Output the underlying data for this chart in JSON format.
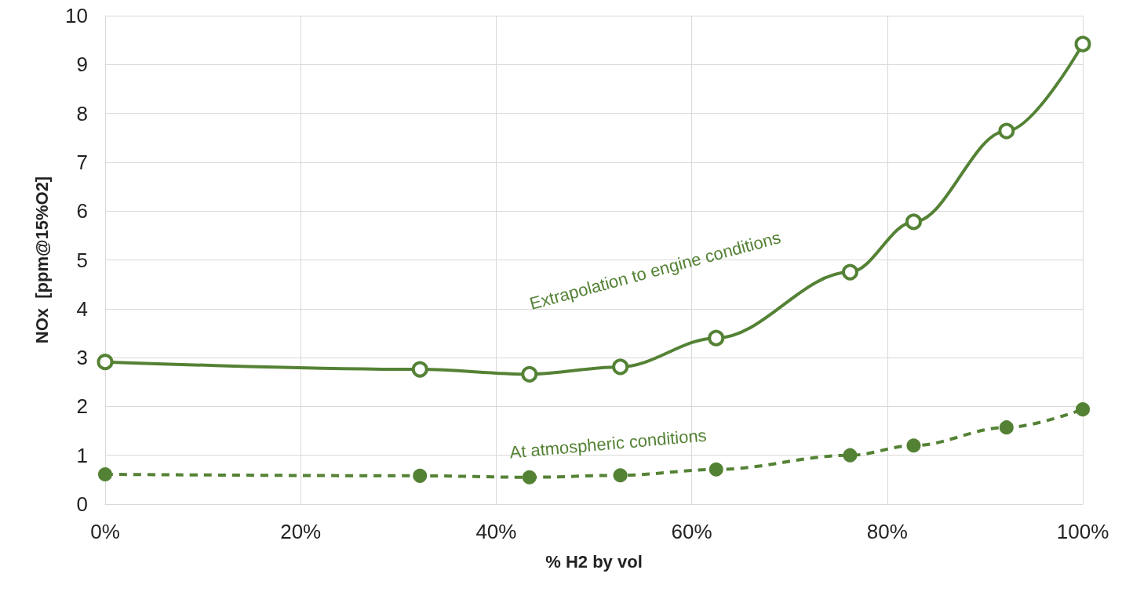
{
  "chart_data": {
    "type": "line",
    "xlabel": "% H2 by vol",
    "ylabel": "NOx  [ppm@15%O2]",
    "x": [
      0,
      32.2,
      43.4,
      52.7,
      62.5,
      76.2,
      82.7,
      92.2,
      100
    ],
    "series": [
      {
        "color": "#548235",
        "line_style": "solid",
        "values": [
          2.91,
          2.76,
          2.66,
          2.81,
          3.4,
          4.75,
          5.78,
          7.64,
          9.42
        ]
      },
      {
        "color": "#548235",
        "line_style": "dashed",
        "values": [
          0.61,
          0.58,
          0.55,
          0.59,
          0.71,
          1.0,
          1.2,
          1.57,
          1.94
        ]
      }
    ],
    "xlim": [
      0,
      100
    ],
    "xticks": [
      {
        "value": 0,
        "label": "0%"
      },
      {
        "value": 20,
        "label": "20%"
      },
      {
        "value": 40,
        "label": "40%"
      },
      {
        "value": 60,
        "label": "60%"
      },
      {
        "value": 80,
        "label": "80%"
      },
      {
        "value": 100,
        "label": "100%"
      }
    ],
    "ylim": [
      0,
      10
    ],
    "yticks": [
      0,
      1,
      2,
      3,
      4,
      5,
      6,
      7,
      8,
      9,
      10
    ],
    "grid": true,
    "marker": "circle",
    "annotations": [
      "Extrapolation to engine conditions",
      "At atmospheric conditions"
    ]
  }
}
